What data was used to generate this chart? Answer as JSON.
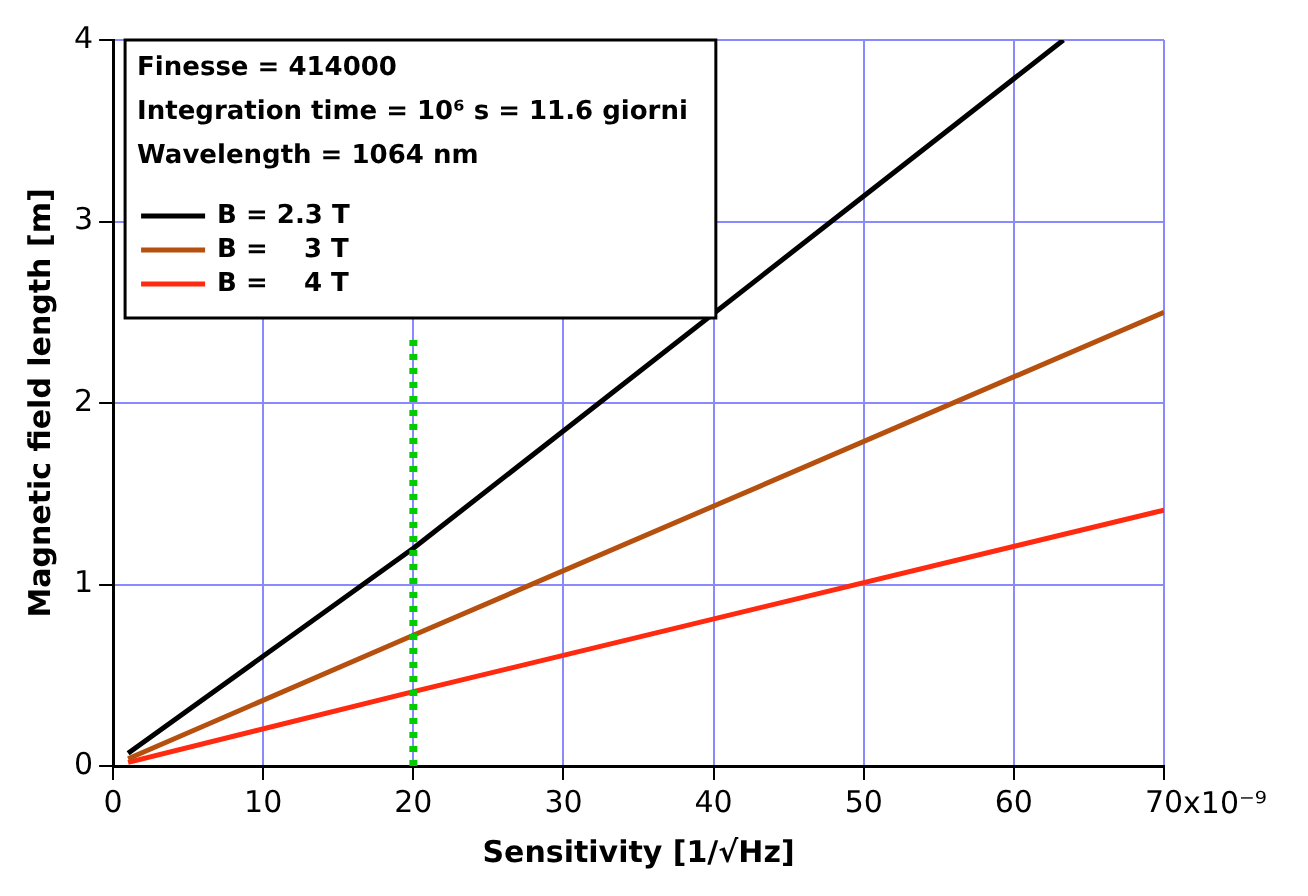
{
  "chart_data": {
    "type": "line",
    "xlabel": "Sensitivity [1/√Hz]",
    "ylabel": "Magnetic field length [m]",
    "annotations": [
      "Finesse = 414000",
      "Integration time = 10⁶ s = 11.6 giorni",
      "Wavelength = 1064 nm",
      "x10⁻⁹"
    ],
    "series": [
      {
        "name": "B = 2.3 T",
        "color": "#000000",
        "x": [
          1,
          20,
          63.3
        ],
        "values": [
          0.07,
          1.2,
          4.0
        ]
      },
      {
        "name": "B =    3 T",
        "color": "#b5500f",
        "x": [
          1,
          20,
          70
        ],
        "values": [
          0.04,
          0.72,
          2.5
        ]
      },
      {
        "name": "B =    4 T",
        "color": "#ff2a10",
        "x": [
          1,
          20,
          70
        ],
        "values": [
          0.02,
          0.41,
          1.41
        ]
      }
    ],
    "xlim": [
      0,
      70
    ],
    "xticks": [
      0,
      10,
      20,
      30,
      40,
      50,
      60,
      70
    ],
    "ylim": [
      0,
      4
    ],
    "yticks": [
      0,
      1,
      2,
      3,
      4
    ],
    "ref_lines": [
      {
        "axis": "x",
        "value": 20,
        "color": "#00cc00",
        "line_style": "dotted"
      }
    ],
    "grid": true,
    "legend": "top left",
    "marker": "none",
    "line_style": "solid"
  }
}
